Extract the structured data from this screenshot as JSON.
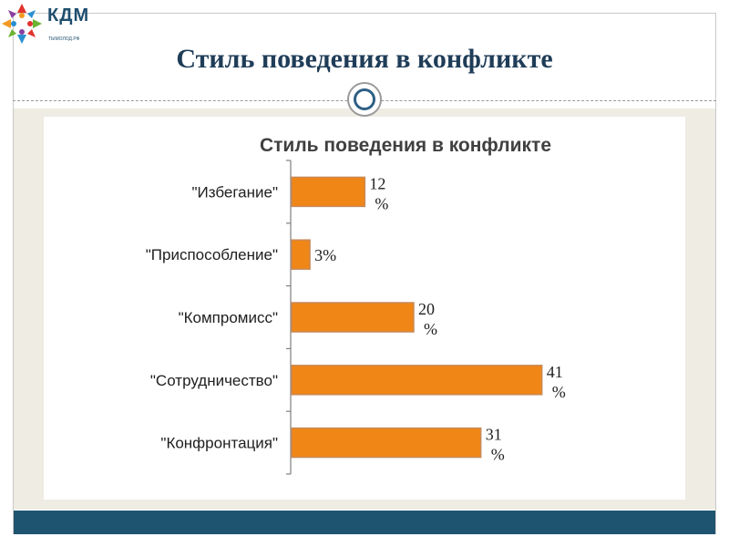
{
  "logo": {
    "name": "КДМ",
    "subtitle": "ТЫМОЛОД.РФ"
  },
  "slide": {
    "title": "Стиль поведения в конфликте"
  },
  "colors": {
    "title": "#1f3d58",
    "band": "#efece3",
    "bottom_band": "#1f5470",
    "bar": "#ef8615"
  },
  "chart_data": {
    "type": "bar",
    "orientation": "horizontal",
    "title": "Стиль поведения в конфликте",
    "categories": [
      "\"Избегание\"",
      "\"Приспособление\"",
      "\"Компромисс\"",
      "\"Сотрудничество\"",
      "\"Конфронтация\""
    ],
    "values": [
      12,
      3,
      20,
      41,
      31
    ],
    "data_labels": [
      "12 %",
      "3%",
      "20 %",
      "41 %",
      "31 %"
    ],
    "xlim": [
      0,
      45
    ],
    "grid": false,
    "legend": "none"
  }
}
